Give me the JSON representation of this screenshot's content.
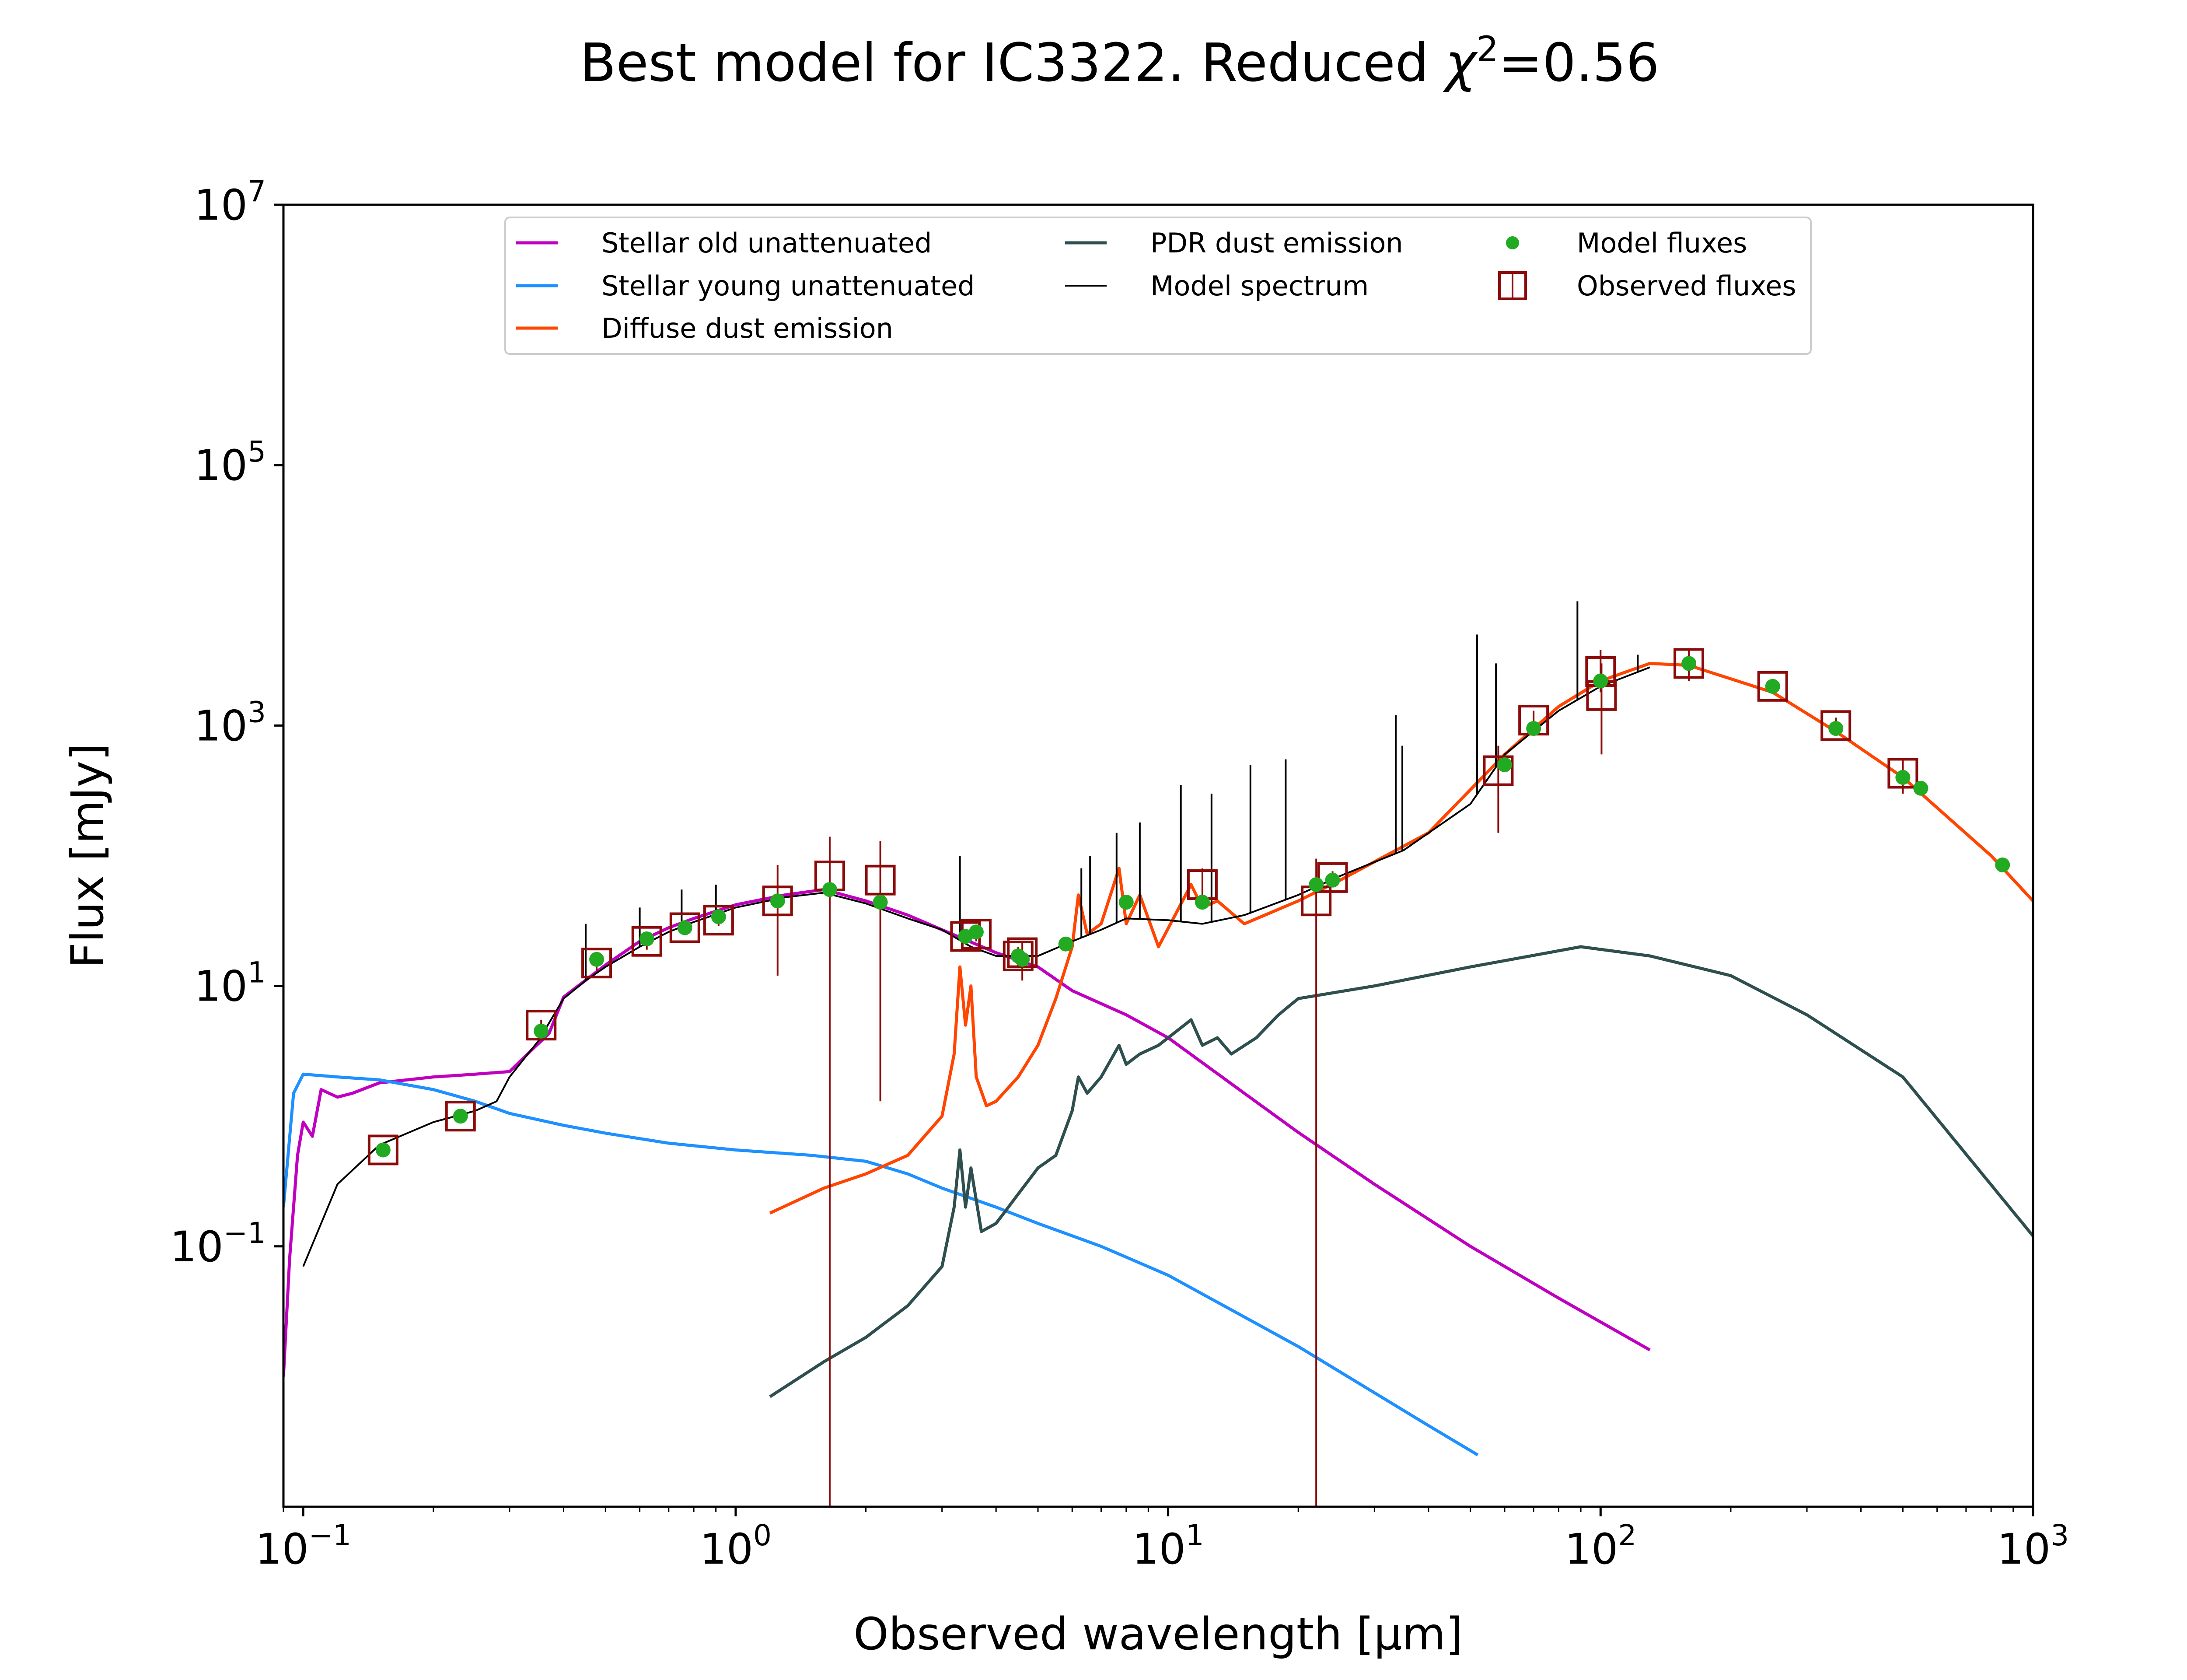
{
  "chart_data": {
    "type": "line",
    "title": "Best model for IC3322. Reduced χ²=0.56",
    "title_main": "Best model for IC3322. Reduced ",
    "title_chi": "χ",
    "title_sup": "2",
    "title_tail": "=0.56",
    "xlabel": "Observed wavelength [μm]",
    "ylabel": "Flux [mJy]",
    "xscale": "log",
    "yscale": "log",
    "xlim": [
      0.09,
      1000
    ],
    "ylim": [
      0.001,
      10000000
    ],
    "x_ticks": [
      {
        "value": 0.1,
        "base": "10",
        "exp": "−1"
      },
      {
        "value": 1,
        "base": "10",
        "exp": "0"
      },
      {
        "value": 10,
        "base": "10",
        "exp": "1"
      },
      {
        "value": 100,
        "base": "10",
        "exp": "2"
      },
      {
        "value": 1000,
        "base": "10",
        "exp": "3"
      }
    ],
    "y_ticks": [
      {
        "value": 0.1,
        "base": "10",
        "exp": "−1"
      },
      {
        "value": 10,
        "base": "10",
        "exp": "1"
      },
      {
        "value": 1000,
        "base": "10",
        "exp": "3"
      },
      {
        "value": 100000,
        "base": "10",
        "exp": "5"
      },
      {
        "value": 10000000,
        "base": "10",
        "exp": "7"
      }
    ],
    "legend_position": "upper center",
    "series": [
      {
        "name": "Stellar old unattenuated",
        "color": "#c000c0",
        "x": [
          0.09,
          0.093,
          0.097,
          0.1,
          0.105,
          0.11,
          0.12,
          0.13,
          0.15,
          0.2,
          0.25,
          0.3,
          0.34,
          0.37,
          0.4,
          0.5,
          0.6,
          0.7,
          0.8,
          1.0,
          1.3,
          1.6,
          2.0,
          2.5,
          3.0,
          4.0,
          5.0,
          6.0,
          8.0,
          10.0,
          15.0,
          20.0,
          30.0,
          50.0,
          80.0,
          130.0
        ],
        "y": [
          0.01,
          0.08,
          0.5,
          0.9,
          0.7,
          1.6,
          1.4,
          1.5,
          1.8,
          2.0,
          2.1,
          2.2,
          3.3,
          4.3,
          8.2,
          14.5,
          22.0,
          28.0,
          33.0,
          42.0,
          50.0,
          55.0,
          45.0,
          35.0,
          27.0,
          18.0,
          14.0,
          9.2,
          6.0,
          4.0,
          1.5,
          0.75,
          0.3,
          0.1,
          0.04,
          0.016
        ]
      },
      {
        "name": "Stellar young unattenuated",
        "color": "#1e90ff",
        "x": [
          0.09,
          0.095,
          0.1,
          0.12,
          0.15,
          0.2,
          0.25,
          0.3,
          0.4,
          0.5,
          0.7,
          1.0,
          1.5,
          2.0,
          2.5,
          3.0,
          4.0,
          5.0,
          7.0,
          10.0,
          20.0,
          40.0,
          52.0
        ],
        "y": [
          0.2,
          1.5,
          2.1,
          2.0,
          1.9,
          1.6,
          1.3,
          1.05,
          0.85,
          0.74,
          0.62,
          0.55,
          0.5,
          0.45,
          0.36,
          0.28,
          0.2,
          0.15,
          0.1,
          0.06,
          0.017,
          0.0042,
          0.0025
        ]
      },
      {
        "name": "Diffuse dust emission",
        "color": "#ff4500",
        "x": [
          1.2,
          1.6,
          2.0,
          2.5,
          3.0,
          3.2,
          3.3,
          3.4,
          3.5,
          3.6,
          3.8,
          4.0,
          4.5,
          5.0,
          5.5,
          6.0,
          6.2,
          6.5,
          7.0,
          7.7,
          8.0,
          8.6,
          9.5,
          11.3,
          12.0,
          13.0,
          15.0,
          20.0,
          25.0,
          40.0,
          60.0,
          80.0,
          100.0,
          130.0,
          160.0,
          250.0,
          350.0,
          500.0,
          800.0,
          1000.0
        ],
        "y": [
          0.18,
          0.28,
          0.36,
          0.5,
          1.0,
          3.0,
          14.0,
          5.0,
          10.0,
          2.0,
          1.2,
          1.3,
          2.0,
          3.5,
          8.0,
          20.0,
          50.0,
          25.0,
          30.0,
          80.0,
          30.0,
          50.0,
          20.0,
          60.0,
          40.0,
          45.0,
          30.0,
          45.0,
          65.0,
          150.0,
          600.0,
          1400.0,
          2200.0,
          3000.0,
          2900.0,
          1800.0,
          900.0,
          400.0,
          100.0,
          45.0
        ]
      },
      {
        "name": "PDR dust emission",
        "color": "#2f4f4f",
        "x": [
          1.2,
          1.6,
          2.0,
          2.5,
          3.0,
          3.2,
          3.3,
          3.4,
          3.5,
          3.7,
          4.0,
          5.0,
          5.5,
          6.0,
          6.2,
          6.5,
          7.0,
          7.7,
          8.0,
          8.6,
          9.5,
          11.3,
          12.0,
          13.0,
          14.0,
          16.0,
          18.0,
          20.0,
          30.0,
          50.0,
          90.0,
          130.0,
          200.0,
          300.0,
          500.0,
          1000.0
        ],
        "y": [
          0.007,
          0.013,
          0.02,
          0.035,
          0.07,
          0.2,
          0.55,
          0.2,
          0.4,
          0.13,
          0.15,
          0.4,
          0.5,
          1.1,
          2.0,
          1.5,
          2.0,
          3.5,
          2.5,
          3.0,
          3.5,
          5.5,
          3.5,
          4.0,
          3.0,
          4.0,
          6.0,
          8.0,
          10.0,
          14.0,
          20.0,
          17.0,
          12.0,
          6.0,
          2.0,
          0.12
        ]
      },
      {
        "name": "Model spectrum",
        "color": "#000000",
        "x": [
          0.1,
          0.11,
          0.12,
          0.15,
          0.2,
          0.25,
          0.28,
          0.3,
          0.35,
          0.4,
          0.45,
          0.5,
          0.6,
          0.7,
          0.8,
          1.0,
          1.3,
          1.6,
          2.0,
          2.5,
          3.0,
          3.5,
          4.0,
          5.0,
          6.0,
          7.0,
          8.0,
          10.0,
          12.0,
          15.0,
          20.0,
          25.0,
          35.0,
          50.0,
          60.0,
          80.0,
          100.0,
          130.0
        ],
        "y": [
          0.07,
          0.15,
          0.3,
          0.6,
          0.9,
          1.1,
          1.3,
          2.0,
          3.8,
          8.0,
          11.0,
          14.0,
          20.0,
          26.0,
          31.0,
          40.0,
          48.0,
          52.0,
          43.0,
          33.0,
          27.0,
          20.0,
          17.0,
          17.0,
          22.0,
          27.0,
          33.0,
          32.0,
          30.0,
          35.0,
          50.0,
          70.0,
          110.0,
          250.0,
          600.0,
          1300.0,
          2000.0,
          2800.0
        ],
        "lines_x": [
          0.45,
          0.6,
          0.75,
          0.9,
          3.3,
          6.3,
          6.6,
          7.6,
          8.6,
          10.7,
          12.6,
          15.5,
          18.7,
          33.6,
          34.8,
          51.8,
          57.3,
          88.4,
          121.9
        ],
        "lines_y": [
          30.0,
          40.0,
          55.0,
          60.0,
          100.0,
          80.0,
          100.0,
          150.0,
          180.0,
          350.0,
          300.0,
          500.0,
          550.0,
          1200.0,
          700.0,
          5000.0,
          3000.0,
          9000.0,
          3500.0
        ]
      }
    ],
    "model_fluxes": {
      "name": "Model fluxes",
      "color": "#22aa22",
      "x": [
        0.153,
        0.231,
        0.355,
        0.477,
        0.623,
        0.763,
        0.913,
        1.25,
        1.65,
        2.16,
        3.4,
        3.6,
        4.5,
        4.6,
        5.8,
        8.0,
        12.0,
        22.0,
        24.0,
        60.0,
        70.0,
        100.0,
        160.0,
        250.0,
        350.0,
        500.0,
        550.0,
        850.0
      ],
      "y": [
        0.55,
        1.0,
        4.5,
        16.0,
        23.0,
        28.0,
        34.0,
        45.0,
        55.0,
        44.0,
        24.0,
        26.0,
        17.0,
        16.0,
        21.0,
        44.0,
        44.0,
        60.0,
        65.0,
        500.0,
        950.0,
        2200.0,
        3000.0,
        2000.0,
        950.0,
        400.0,
        330.0,
        85.0
      ]
    },
    "observed_fluxes": {
      "name": "Observed fluxes",
      "color": "#8b0a0a",
      "x": [
        0.153,
        0.231,
        0.355,
        0.477,
        0.623,
        0.763,
        0.913,
        1.25,
        1.65,
        2.16,
        3.4,
        3.6,
        4.5,
        4.6,
        12.0,
        22.0,
        24.0,
        58.0,
        70.0,
        100.0,
        100.5,
        160.0,
        250.0,
        350.0,
        500.0
      ],
      "y": [
        0.55,
        1.0,
        5.0,
        15.0,
        22.0,
        28.0,
        32.0,
        45.0,
        70.0,
        65.0,
        24.0,
        25.0,
        17.0,
        18.0,
        60.0,
        45.0,
        68.0,
        450.0,
        1100.0,
        2600.0,
        1700.0,
        3000.0,
        2000.0,
        1000.0,
        430.0
      ],
      "err_low": [
        0.5,
        0.9,
        3.8,
        13.0,
        19.0,
        25.0,
        29.0,
        12.0,
        0.001,
        1.3,
        21.0,
        22.0,
        14.0,
        11.0,
        40.0,
        0.001,
        60.0,
        150.0,
        850.0,
        1800.0,
        600.0,
        2200.0,
        1800.0,
        850.0,
        300.0
      ],
      "err_high": [
        0.62,
        1.1,
        5.5,
        17.0,
        25.0,
        31.0,
        36.0,
        85.0,
        140.0,
        130.0,
        27.0,
        28.0,
        20.0,
        22.0,
        80.0,
        95.0,
        76.0,
        700.0,
        1300.0,
        3800.0,
        3000.0,
        3900.0,
        2200.0,
        1150.0,
        560.0
      ]
    }
  }
}
